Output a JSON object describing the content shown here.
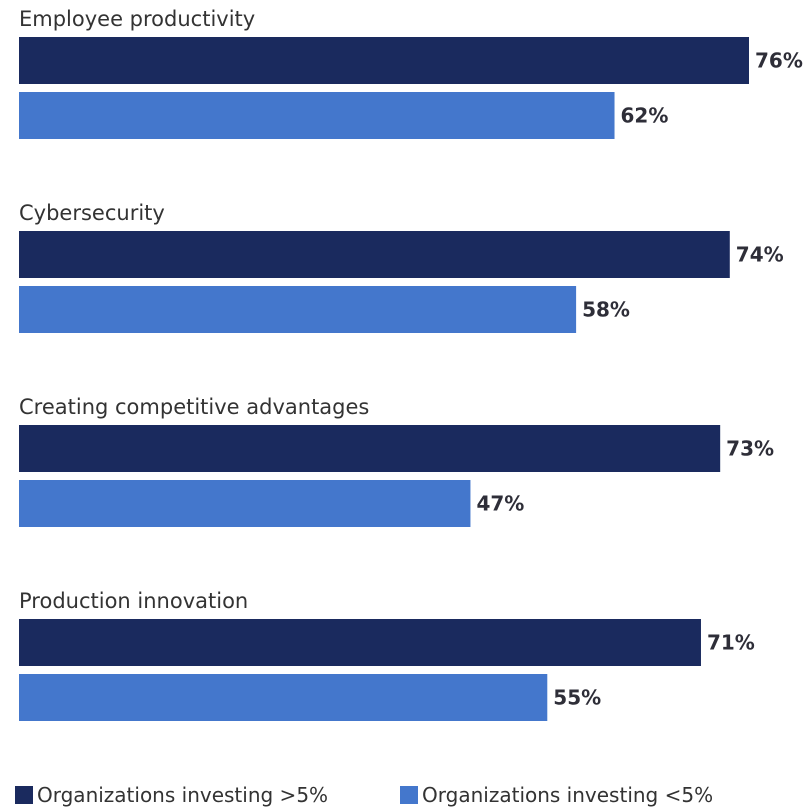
{
  "colors": {
    "series_above_5": "#1a2a5e",
    "series_below_5": "#4477cc"
  },
  "chart_data": {
    "type": "bar",
    "orientation": "horizontal",
    "categories": [
      "Employee productivity",
      "Cybersecurity",
      "Creating competitive advantages",
      "Production innovation"
    ],
    "series": [
      {
        "name": "Organizations investing >5%",
        "values": [
          76,
          74,
          73,
          71
        ],
        "labels": [
          "76%",
          "74%",
          "73%",
          "71%"
        ]
      },
      {
        "name": "Organizations investing <5%",
        "values": [
          62,
          58,
          47,
          55
        ],
        "labels": [
          "62%",
          "58%",
          "47%",
          "55%"
        ]
      }
    ],
    "unit": "%",
    "xlim": [
      0,
      76
    ],
    "grid": false,
    "legend_position": "bottom"
  },
  "legend": {
    "items": [
      {
        "label": "Organizations investing >5%"
      },
      {
        "label": "Organizations investing <5%"
      }
    ]
  }
}
